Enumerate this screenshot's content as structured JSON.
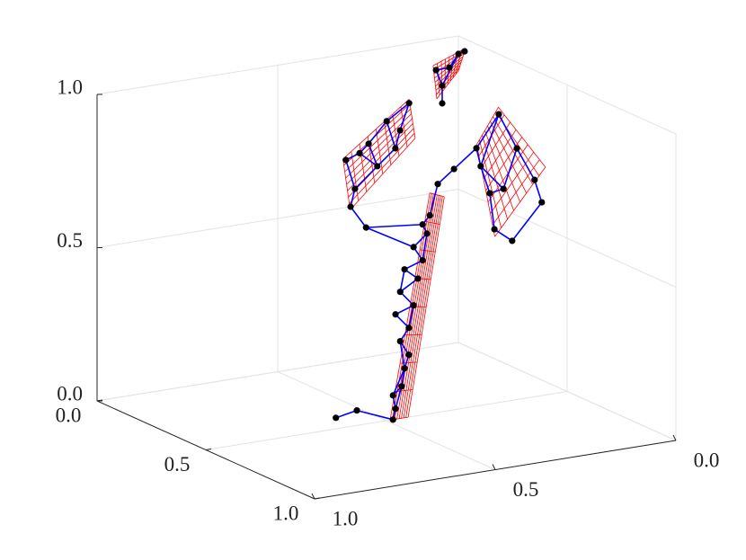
{
  "chart_data": {
    "type": "graph3d",
    "x": [
      0.5,
      0.5,
      0.5,
      0.5,
      0.5,
      0.5,
      0.5,
      0.5,
      0.5,
      0.5,
      0.5,
      0.5,
      0.5,
      0.5,
      0.5,
      0.5,
      0.5,
      0.5,
      0.5,
      0.5,
      0.5,
      0.3,
      0.3,
      0.3,
      0.3,
      0.3,
      0.3,
      0.3,
      0.3,
      0.3,
      0.3,
      0.3,
      0.1,
      0.1,
      0.1,
      0.1,
      0.1,
      0.1,
      0.4,
      0.4,
      0.4,
      0.4,
      0.4,
      0.4,
      0.4,
      0.4,
      0.4,
      0.4,
      0.4
    ],
    "y": [
      0.64,
      0.582,
      0.482,
      0.475,
      0.482,
      0.458,
      0.45,
      0.438,
      0.462,
      0.438,
      0.475,
      0.425,
      0.462,
      0.413,
      0.45,
      0.4,
      0.425,
      0.388,
      0.4,
      0.38,
      0.358,
      0.317,
      0.379,
      0.342,
      0.429,
      0.454,
      0.355,
      0.492,
      0.405,
      0.467,
      0.479,
      0.436,
      0.043,
      0.06,
      0.085,
      0.122,
      0.105,
      0.105,
      0.129,
      0.079,
      0.191,
      0.179,
      0.03,
      0.01,
      0.116,
      0.154,
      0.141,
      0.092,
      0.253
    ],
    "z": [
      0.036,
      0.049,
      0,
      0.034,
      0.079,
      0.104,
      0.161,
      0.203,
      0.252,
      0.291,
      0.342,
      0.362,
      0.413,
      0.447,
      0.484,
      0.504,
      0.552,
      0.589,
      0.621,
      0.647,
      0.745,
      0.937,
      0.89,
      0.853,
      0.826,
      0.8,
      0.797,
      0.785,
      0.748,
      0.686,
      0.63,
      0.554,
      0.99,
      0.985,
      0.945,
      0.944,
      0.89,
      0.832,
      0.897,
      0.776,
      0.798,
      0.737,
      0.664,
      0.587,
      0.651,
      0.644,
      0.524,
      0.477,
      0.742
    ],
    "edges": [
      [
        0,
        1
      ],
      [
        1,
        2
      ],
      [
        2,
        3
      ],
      [
        3,
        4
      ],
      [
        4,
        5
      ],
      [
        5,
        6
      ],
      [
        6,
        7
      ],
      [
        7,
        8
      ],
      [
        8,
        9
      ],
      [
        9,
        10
      ],
      [
        10,
        11
      ],
      [
        11,
        12
      ],
      [
        12,
        13
      ],
      [
        13,
        14
      ],
      [
        14,
        15
      ],
      [
        15,
        16
      ],
      [
        16,
        17
      ],
      [
        17,
        18
      ],
      [
        18,
        19
      ],
      [
        19,
        20
      ],
      [
        20,
        48
      ],
      [
        3,
        5
      ],
      [
        6,
        8
      ],
      [
        9,
        11
      ],
      [
        12,
        14
      ],
      [
        15,
        17
      ],
      [
        4,
        6
      ],
      [
        31,
        16
      ],
      [
        31,
        18
      ],
      [
        31,
        30
      ],
      [
        30,
        29
      ],
      [
        29,
        27
      ],
      [
        27,
        25
      ],
      [
        25,
        24
      ],
      [
        24,
        22
      ],
      [
        22,
        21
      ],
      [
        21,
        23
      ],
      [
        23,
        26
      ],
      [
        26,
        28
      ],
      [
        28,
        29
      ],
      [
        24,
        28
      ],
      [
        25,
        28
      ],
      [
        22,
        26
      ],
      [
        32,
        33
      ],
      [
        33,
        34
      ],
      [
        34,
        35
      ],
      [
        35,
        36
      ],
      [
        36,
        37
      ],
      [
        33,
        36
      ],
      [
        48,
        40
      ],
      [
        40,
        38
      ],
      [
        38,
        39
      ],
      [
        39,
        42
      ],
      [
        42,
        43
      ],
      [
        43,
        47
      ],
      [
        47,
        46
      ],
      [
        46,
        45
      ],
      [
        45,
        41
      ],
      [
        41,
        40
      ],
      [
        44,
        45
      ],
      [
        44,
        39
      ],
      [
        41,
        44
      ],
      [
        38,
        41
      ]
    ],
    "surfaces": [
      [
        [
          0.3,
          0.5,
          0.79
        ],
        [
          0.3,
          0.317,
          0.95
        ],
        [
          0.3,
          0.3,
          0.82
        ],
        [
          0.3,
          0.48,
          0.62
        ]
      ],
      [
        [
          0.1,
          0.13,
          0.96
        ],
        [
          0.1,
          0.04,
          1.0
        ],
        [
          0.1,
          0.06,
          0.93
        ],
        [
          0.1,
          0.12,
          0.85
        ]
      ],
      [
        [
          0.4,
          0.19,
          0.81
        ],
        [
          0.4,
          0.13,
          0.92
        ],
        [
          0.4,
          0.0,
          0.7
        ],
        [
          0.4,
          0.14,
          0.5
        ]
      ],
      [
        [
          0.5,
          0.49,
          0.0
        ],
        [
          0.5,
          0.38,
          0.72
        ],
        [
          0.5,
          0.34,
          0.7
        ],
        [
          0.5,
          0.44,
          0.0
        ]
      ]
    ],
    "node_color": "#000000",
    "edge_color": "#0000ff",
    "surface_color": "#ff0000",
    "xlim": [
      0,
      1
    ],
    "ylim": [
      0,
      1
    ],
    "zlim": [
      0,
      1
    ],
    "xticks": [
      {
        "value": 0,
        "label": "0.0"
      },
      {
        "value": 0.5,
        "label": "0.5"
      },
      {
        "value": 1,
        "label": "1.0"
      }
    ],
    "yticks": [
      {
        "value": 0,
        "label": "0.0"
      },
      {
        "value": 0.5,
        "label": "0.5"
      },
      {
        "value": 1,
        "label": "1.0"
      }
    ],
    "zticks": [
      {
        "value": 0,
        "label": "0.0"
      },
      {
        "value": 0.5,
        "label": "0.5"
      },
      {
        "value": 1,
        "label": "1.0"
      }
    ],
    "grid": true
  }
}
